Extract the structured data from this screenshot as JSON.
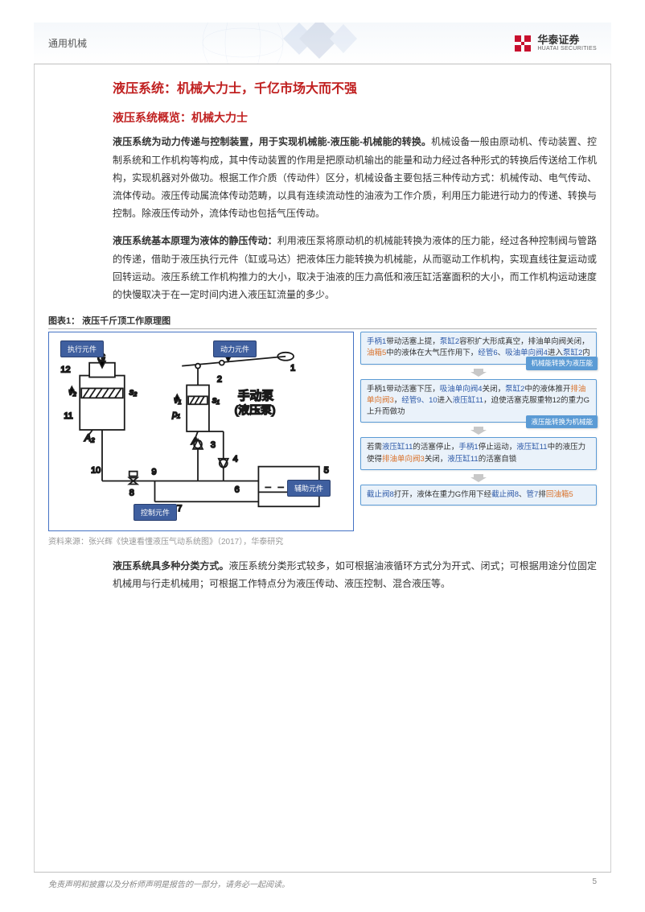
{
  "header": {
    "category": "通用机械",
    "logo_cn": "华泰证券",
    "logo_en": "HUATAI SECURITIES",
    "logo_color": "#c8102e"
  },
  "titles": {
    "h1": "液压系统：机械大力士，千亿市场大而不强",
    "h2": "液压系统概览：机械大力士"
  },
  "paragraphs": {
    "p1_bold": "液压系统为动力传递与控制装置，用于实现机械能-液压能-机械能的转换。",
    "p1_rest": "机械设备一般由原动机、传动装置、控制系统和工作机构等构成，其中传动装置的作用是把原动机输出的能量和动力经过各种形式的转换后传送给工作机构，实现机器对外做功。根据工作介质（传动件）区分，机械设备主要包括三种传动方式：机械传动、电气传动、流体传动。液压传动属流体传动范畴，以具有连续流动性的油液为工作介质，利用压力能进行动力的传递、转换与控制。除液压传动外，流体传动也包括气压传动。",
    "p2_bold": "液压系统基本原理为液体的静压传动：",
    "p2_rest": "利用液压泵将原动机的机械能转换为液体的压力能，经过各种控制阀与管路的传递，借助于液压执行元件（缸或马达）把液体压力能转换为机械能，从而驱动工作机构，实现直线往复运动或回转运动。液压系统工作机构推力的大小，取决于油液的压力高低和液压缸活塞面积的大小，而工作机构运动速度的快慢取决于在一定时间内进入液压缸流量的多少。",
    "p3_bold": "液压系统具多种分类方式。",
    "p3_rest": "液压系统分类形式较多，如可根据油液循环方式分为开式、闭式；可根据用途分位固定机械用与行走机械用；可根据工作特点分为液压传动、液压控制、混合液压等。"
  },
  "figure": {
    "caption": "图表1：  液压千斤顶工作原理图",
    "tags": {
      "exec": "执行元件",
      "power": "动力元件",
      "aux": "辅助元件",
      "control": "控制元件"
    },
    "diagram_labels": {
      "G": "G",
      "F": "F",
      "pump": "手动泵",
      "pump_sub": "(液压泵)",
      "v1": "v₁",
      "v2": "v₂",
      "p1": "p₁",
      "A1": "A₁",
      "A2": "A₂",
      "s1": "s₁",
      "s2": "s₂"
    },
    "flow": [
      {
        "parts": [
          {
            "t": "手柄1",
            "c": "hl-blue"
          },
          {
            "t": "带动活塞上提，"
          },
          {
            "t": "泵缸2",
            "c": "hl-blue"
          },
          {
            "t": "容积扩大形成真空，排油单向阀关闭，"
          },
          {
            "t": "油箱5",
            "c": "hl-orange"
          },
          {
            "t": "中的液体在大气压作用下，"
          },
          {
            "t": "经管6",
            "c": "hl-blue"
          },
          {
            "t": "、"
          },
          {
            "t": "吸油单向阀4",
            "c": "hl-blue"
          },
          {
            "t": "进入"
          },
          {
            "t": "泵缸2",
            "c": "hl-blue"
          },
          {
            "t": "内"
          }
        ],
        "tag": "机械能转换为液压能"
      },
      {
        "parts": [
          {
            "t": "手柄1带动活塞下压，"
          },
          {
            "t": "吸油单向阀4",
            "c": "hl-blue"
          },
          {
            "t": "关闭，"
          },
          {
            "t": "泵缸2",
            "c": "hl-blue"
          },
          {
            "t": "中的液体推开"
          },
          {
            "t": "排油单向阀3",
            "c": "hl-orange"
          },
          {
            "t": "，"
          },
          {
            "t": "经管9、10",
            "c": "hl-blue"
          },
          {
            "t": "进入"
          },
          {
            "t": "液压缸11",
            "c": "hl-blue"
          },
          {
            "t": "，迫使活塞克服重物12的重力G上升而做功"
          }
        ],
        "tag": "液压能转换为机械能"
      },
      {
        "parts": [
          {
            "t": "若需"
          },
          {
            "t": "液压缸11",
            "c": "hl-blue"
          },
          {
            "t": "的活塞停止，"
          },
          {
            "t": "手柄1",
            "c": "hl-blue"
          },
          {
            "t": "停止运动，"
          },
          {
            "t": "液压缸11",
            "c": "hl-blue"
          },
          {
            "t": "中的液压力使得"
          },
          {
            "t": "排油单向阀3",
            "c": "hl-orange"
          },
          {
            "t": "关闭，"
          },
          {
            "t": "液压缸11",
            "c": "hl-blue"
          },
          {
            "t": "的活塞自锁"
          }
        ]
      },
      {
        "parts": [
          {
            "t": "截止阀8",
            "c": "hl-blue"
          },
          {
            "t": "打开，液体在重力G作用下经"
          },
          {
            "t": "截止阀8",
            "c": "hl-blue"
          },
          {
            "t": "、"
          },
          {
            "t": "管7",
            "c": "hl-blue"
          },
          {
            "t": "排"
          },
          {
            "t": "回油箱5",
            "c": "hl-orange"
          }
        ]
      }
    ],
    "arrow_color": "#c8c8c8"
  },
  "source": "资料来源：张兴辉《快速看懂液压气动系统图》（2017），华泰研究",
  "footer": {
    "disclaimer": "免责声明和披露以及分析师声明是报告的一部分，请务必一起阅读。",
    "page": "5"
  },
  "colors": {
    "title_red": "#c02020",
    "diagram_border": "#4472c4",
    "tag_bg": "#3f5f9f",
    "flow_border": "#5b9bd5",
    "flow_bg": "#eaf2fa"
  }
}
